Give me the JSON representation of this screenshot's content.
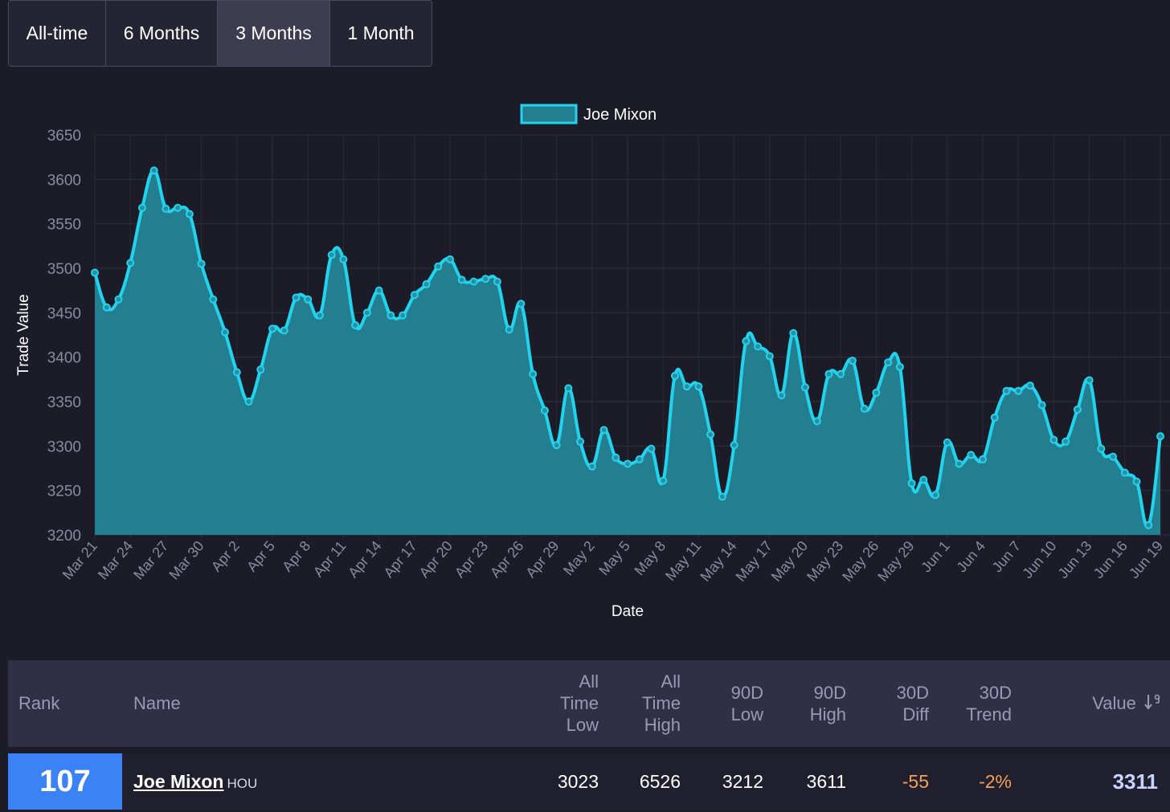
{
  "range_tabs": [
    {
      "label": "All-time",
      "active": false
    },
    {
      "label": "6 Months",
      "active": false
    },
    {
      "label": "3 Months",
      "active": true
    },
    {
      "label": "1 Month",
      "active": false
    }
  ],
  "chart_data": {
    "type": "area",
    "title": "",
    "xlabel": "Date",
    "ylabel": "Trade Value",
    "ylim": [
      3200,
      3650
    ],
    "yticks": [
      3200,
      3250,
      3300,
      3350,
      3400,
      3450,
      3500,
      3550,
      3600,
      3650
    ],
    "x_tick_labels": [
      "Mar 21",
      "Mar 24",
      "Mar 27",
      "Mar 30",
      "Apr 2",
      "Apr 5",
      "Apr 8",
      "Apr 11",
      "Apr 14",
      "Apr 17",
      "Apr 20",
      "Apr 23",
      "Apr 26",
      "Apr 29",
      "May 2",
      "May 5",
      "May 8",
      "May 11",
      "May 14",
      "May 17",
      "May 20",
      "May 23",
      "May 26",
      "May 29",
      "Jun 1",
      "Jun 4",
      "Jun 7",
      "Jun 10",
      "Jun 13",
      "Jun 16",
      "Jun 19"
    ],
    "legend_position": "top-center",
    "grid": true,
    "line_color": "#22d3ee",
    "fill_color": "#237e90",
    "series": [
      {
        "name": "Joe Mixon",
        "values": [
          3495,
          3456,
          3465,
          3506,
          3568,
          3610,
          3567,
          3568,
          3561,
          3505,
          3465,
          3428,
          3383,
          3350,
          3386,
          3432,
          3430,
          3467,
          3465,
          3447,
          3515,
          3510,
          3436,
          3450,
          3475,
          3447,
          3447,
          3470,
          3482,
          3502,
          3510,
          3487,
          3485,
          3488,
          3485,
          3431,
          3460,
          3381,
          3340,
          3301,
          3365,
          3305,
          3277,
          3318,
          3287,
          3280,
          3285,
          3297,
          3261,
          3379,
          3367,
          3367,
          3313,
          3243,
          3301,
          3418,
          3412,
          3401,
          3357,
          3427,
          3366,
          3328,
          3381,
          3381,
          3396,
          3342,
          3360,
          3394,
          3389,
          3258,
          3262,
          3245,
          3304,
          3280,
          3290,
          3285,
          3332,
          3362,
          3362,
          3368,
          3346,
          3307,
          3305,
          3341,
          3374,
          3297,
          3288,
          3270,
          3260,
          3211,
          3311
        ]
      }
    ]
  },
  "table": {
    "headers": {
      "rank": "Rank",
      "name": "Name",
      "all_time_low": [
        "All",
        "Time",
        "Low"
      ],
      "all_time_high": [
        "All",
        "Time",
        "High"
      ],
      "low_90d": [
        "90D",
        "Low"
      ],
      "high_90d": [
        "90D",
        "High"
      ],
      "diff_30d": [
        "30D",
        "Diff"
      ],
      "trend_30d": [
        "30D",
        "Trend"
      ],
      "value": "Value",
      "sort_icon": "sort-descending-icon"
    },
    "row": {
      "rank": "107",
      "name": "Joe Mixon",
      "team": "HOU",
      "all_time_low": "3023",
      "all_time_high": "6526",
      "low_90d": "3212",
      "high_90d": "3611",
      "diff_30d": "-55",
      "trend_30d": "-2%",
      "value": "3311"
    }
  }
}
